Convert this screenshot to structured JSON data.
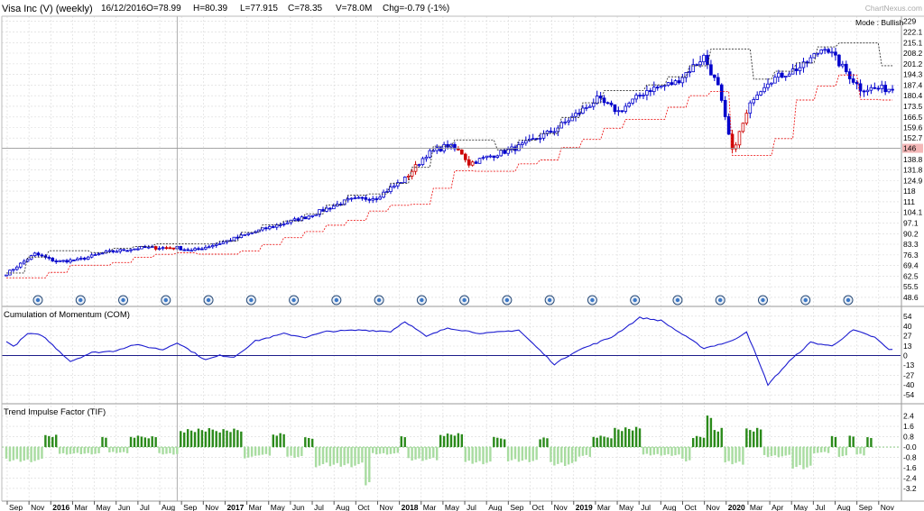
{
  "header": {
    "title": "Visa Inc (V) (weekly)",
    "date": "16/12/2016",
    "open": "O=78.99",
    "high": "H=80.39",
    "low": "L=77.915",
    "close": "C=78.35",
    "volume": "V=78.0M",
    "change": "Chg=-0.79 (-1%)"
  },
  "watermark": "ChartNexus.com",
  "mode_label": "Mode : Bullish",
  "crosshair_price": "146",
  "colors": {
    "up": "#0000cc",
    "down": "#cc0000",
    "upper_band": "#333333",
    "lower_band": "#ee2222",
    "com_line": "#1c1cd0",
    "tif_up": "#2a8a1a",
    "tif_down": "#a8dca0",
    "grid": "#d8d8d8",
    "price_marker": "#f4b8b8"
  },
  "chart_data": [
    {
      "type": "candlestick",
      "name": "price",
      "y_ticks": [
        "229",
        "222.1",
        "215.1",
        "208.2",
        "201.2",
        "194.3",
        "187.4",
        "180.4",
        "173.5",
        "166.5",
        "159.6",
        "152.7",
        "146",
        "138.8",
        "131.8",
        "124.9",
        "118",
        "111",
        "104.1",
        "97.1",
        "90.2",
        "83.3",
        "76.3",
        "69.4",
        "62.5",
        "55.5",
        "48.6"
      ],
      "ylim": [
        45,
        230
      ],
      "anchors": [
        {
          "t": 0,
          "c": 64
        },
        {
          "t": 8,
          "c": 77
        },
        {
          "t": 14,
          "c": 72
        },
        {
          "t": 20,
          "c": 73
        },
        {
          "t": 28,
          "c": 78
        },
        {
          "t": 38,
          "c": 81
        },
        {
          "t": 48,
          "c": 81
        },
        {
          "t": 52,
          "c": 79
        },
        {
          "t": 60,
          "c": 84
        },
        {
          "t": 72,
          "c": 93
        },
        {
          "t": 84,
          "c": 101
        },
        {
          "t": 96,
          "c": 112
        },
        {
          "t": 104,
          "c": 114
        },
        {
          "t": 112,
          "c": 126
        },
        {
          "t": 118,
          "c": 142
        },
        {
          "t": 124,
          "c": 148
        },
        {
          "t": 128,
          "c": 143
        },
        {
          "t": 130,
          "c": 136
        },
        {
          "t": 136,
          "c": 141
        },
        {
          "t": 144,
          "c": 147
        },
        {
          "t": 154,
          "c": 158
        },
        {
          "t": 166,
          "c": 178
        },
        {
          "t": 172,
          "c": 170
        },
        {
          "t": 180,
          "c": 184
        },
        {
          "t": 188,
          "c": 189
        },
        {
          "t": 196,
          "c": 206
        },
        {
          "t": 200,
          "c": 186
        },
        {
          "t": 204,
          "c": 144
        },
        {
          "t": 210,
          "c": 180
        },
        {
          "t": 214,
          "c": 190
        },
        {
          "t": 224,
          "c": 200
        },
        {
          "t": 230,
          "c": 213
        },
        {
          "t": 236,
          "c": 196
        },
        {
          "t": 240,
          "c": 185
        }
      ],
      "markers_count": 20
    },
    {
      "type": "line",
      "name": "Cumulation of Momentum (COM)",
      "y_ticks": [
        "54",
        "40",
        "27",
        "13",
        "0",
        "-13",
        "-27",
        "-40",
        "-54"
      ],
      "ylim": [
        -60,
        60
      ],
      "anchors": [
        {
          "t": 0,
          "v": 20
        },
        {
          "t": 2,
          "v": 12
        },
        {
          "t": 6,
          "v": 30
        },
        {
          "t": 10,
          "v": 28
        },
        {
          "t": 18,
          "v": -8
        },
        {
          "t": 24,
          "v": 4
        },
        {
          "t": 30,
          "v": 6
        },
        {
          "t": 36,
          "v": 15
        },
        {
          "t": 44,
          "v": 8
        },
        {
          "t": 48,
          "v": 18
        },
        {
          "t": 56,
          "v": -6
        },
        {
          "t": 60,
          "v": 0
        },
        {
          "t": 64,
          "v": -2
        },
        {
          "t": 70,
          "v": 20
        },
        {
          "t": 78,
          "v": 30
        },
        {
          "t": 84,
          "v": 25
        },
        {
          "t": 90,
          "v": 33
        },
        {
          "t": 100,
          "v": 35
        },
        {
          "t": 108,
          "v": 33
        },
        {
          "t": 112,
          "v": 47
        },
        {
          "t": 118,
          "v": 26
        },
        {
          "t": 124,
          "v": 38
        },
        {
          "t": 134,
          "v": 30
        },
        {
          "t": 144,
          "v": 35
        },
        {
          "t": 154,
          "v": -12
        },
        {
          "t": 160,
          "v": 6
        },
        {
          "t": 170,
          "v": 25
        },
        {
          "t": 178,
          "v": 52
        },
        {
          "t": 184,
          "v": 48
        },
        {
          "t": 196,
          "v": 10
        },
        {
          "t": 204,
          "v": 20
        },
        {
          "t": 208,
          "v": 33
        },
        {
          "t": 214,
          "v": -40
        },
        {
          "t": 220,
          "v": -8
        },
        {
          "t": 226,
          "v": 18
        },
        {
          "t": 232,
          "v": 13
        },
        {
          "t": 238,
          "v": 35
        },
        {
          "t": 244,
          "v": 25
        },
        {
          "t": 248,
          "v": 8
        }
      ]
    },
    {
      "type": "bar",
      "name": "Trend Impulse Factor (TIF)",
      "y_ticks": [
        "2.4",
        "1.6",
        "0.8",
        "-0.0",
        "-0.8",
        "-1.6",
        "-2.4",
        "-3.2"
      ],
      "ylim": [
        -3.9,
        3.0
      ],
      "segments": [
        {
          "from": 0,
          "to": 10,
          "v": -1.2
        },
        {
          "from": 11,
          "to": 14,
          "v": 1.0
        },
        {
          "from": 15,
          "to": 26,
          "v": -0.6
        },
        {
          "from": 27,
          "to": 28,
          "v": 0.8
        },
        {
          "from": 29,
          "to": 34,
          "v": -0.5
        },
        {
          "from": 35,
          "to": 42,
          "v": 0.9
        },
        {
          "from": 43,
          "to": 48,
          "v": -0.6
        },
        {
          "from": 49,
          "to": 66,
          "v": 1.5
        },
        {
          "from": 67,
          "to": 70,
          "v": -0.9
        },
        {
          "from": 71,
          "to": 74,
          "v": -0.7
        },
        {
          "from": 75,
          "to": 78,
          "v": 1.1
        },
        {
          "from": 79,
          "to": 83,
          "v": -0.9
        },
        {
          "from": 84,
          "to": 86,
          "v": 0.8
        },
        {
          "from": 87,
          "to": 100,
          "v": -1.6
        },
        {
          "from": 101,
          "to": 102,
          "v": -3.2
        },
        {
          "from": 103,
          "to": 110,
          "v": -0.6
        },
        {
          "from": 111,
          "to": 112,
          "v": 0.9
        },
        {
          "from": 113,
          "to": 121,
          "v": -1.1
        },
        {
          "from": 122,
          "to": 128,
          "v": 1.1
        },
        {
          "from": 129,
          "to": 136,
          "v": -1.4
        },
        {
          "from": 137,
          "to": 140,
          "v": 0.8
        },
        {
          "from": 141,
          "to": 149,
          "v": -1.2
        },
        {
          "from": 150,
          "to": 152,
          "v": 0.8
        },
        {
          "from": 153,
          "to": 160,
          "v": -1.5
        },
        {
          "from": 161,
          "to": 164,
          "v": -0.8
        },
        {
          "from": 165,
          "to": 170,
          "v": 0.9
        },
        {
          "from": 171,
          "to": 178,
          "v": 1.6
        },
        {
          "from": 179,
          "to": 189,
          "v": -0.7
        },
        {
          "from": 190,
          "to": 192,
          "v": -1.2
        },
        {
          "from": 193,
          "to": 196,
          "v": 0.9
        },
        {
          "from": 197,
          "to": 198,
          "v": 2.5
        },
        {
          "from": 199,
          "to": 201,
          "v": 1.6
        },
        {
          "from": 202,
          "to": 207,
          "v": -1.4
        },
        {
          "from": 208,
          "to": 212,
          "v": 1.6
        },
        {
          "from": 213,
          "to": 220,
          "v": -0.8
        },
        {
          "from": 221,
          "to": 226,
          "v": -1.8
        },
        {
          "from": 227,
          "to": 231,
          "v": -0.5
        },
        {
          "from": 232,
          "to": 233,
          "v": 1.0
        },
        {
          "from": 234,
          "to": 236,
          "v": -0.8
        },
        {
          "from": 237,
          "to": 238,
          "v": 0.9
        },
        {
          "from": 239,
          "to": 241,
          "v": -0.7
        },
        {
          "from": 242,
          "to": 243,
          "v": 0.9
        }
      ]
    }
  ],
  "x_axis": {
    "labels": [
      "Sep",
      "Nov",
      "2016",
      "Mar",
      "May",
      "Jun",
      "Jul",
      "Aug",
      "Sep",
      "Nov",
      "2017",
      "Mar",
      "May",
      "Jun",
      "Jul",
      "Aug",
      "Oct",
      "Nov",
      "2018",
      "Mar",
      "May",
      "Jul",
      "Aug",
      "Sep",
      "Oct",
      "Nov",
      "2019",
      "Mar",
      "May",
      "Jul",
      "Aug",
      "Oct",
      "Nov",
      "2020",
      "Mar",
      "Apr",
      "May",
      "Jul",
      "Aug",
      "Sep",
      "Nov"
    ],
    "bold": [
      "2016",
      "2017",
      "2018",
      "2019",
      "2020"
    ]
  }
}
